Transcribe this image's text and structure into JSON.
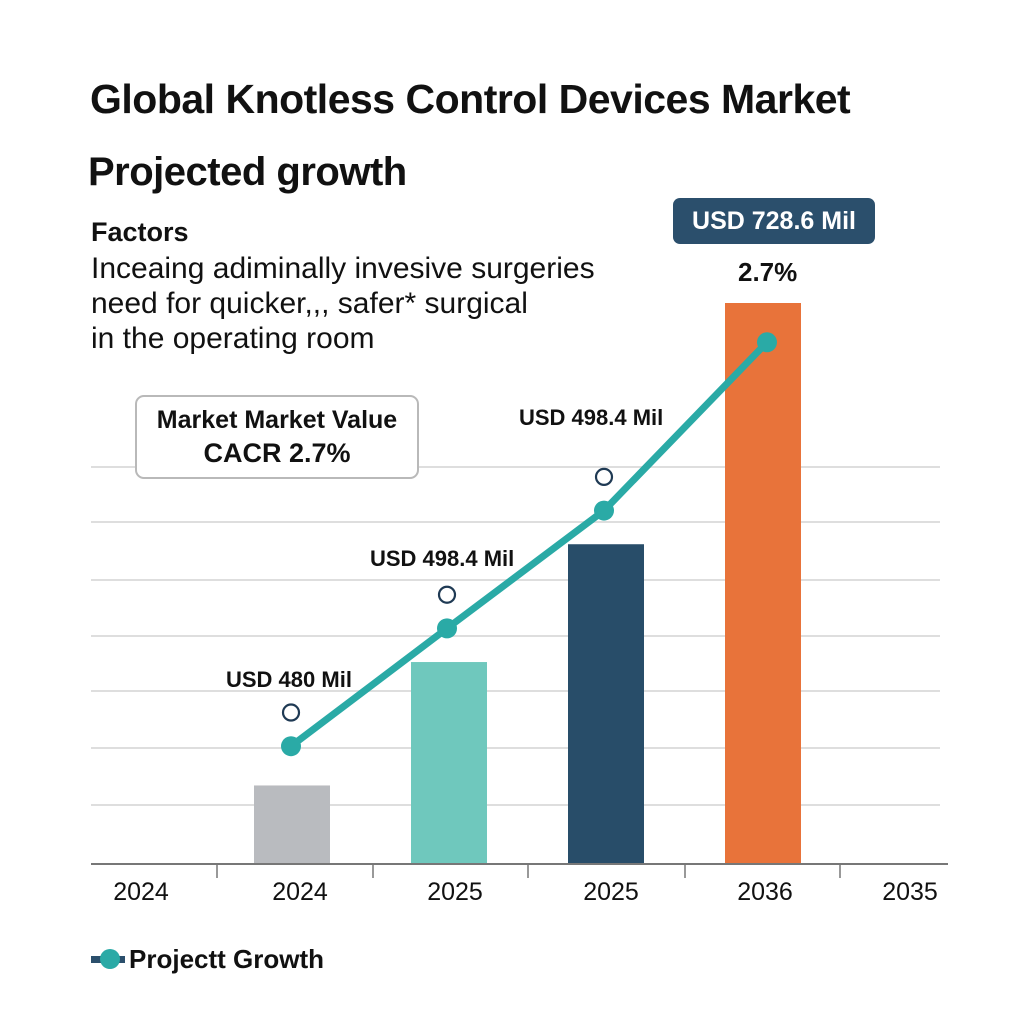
{
  "title": "Global Knotless Control Devices Market",
  "subtitle": "Projected growth",
  "factors": {
    "heading": "Factors",
    "lines": [
      "Inceaing adiminally invesive surgeries",
      "need for quicker,,, safer* surgical",
      "in the operating room"
    ]
  },
  "cagr_box": {
    "line1": "Market Market Value",
    "line2": "CACR 2.7%"
  },
  "highlight": {
    "badge": "USD 728.6 Mil",
    "growth": "2.7%"
  },
  "legend": {
    "label": "Projectt Growth"
  },
  "colors": {
    "bar_2024": "#b9bbbf",
    "bar_2025a": "#6fc8bd",
    "bar_2025b": "#284d69",
    "bar_2036": "#e8733a",
    "line": "#2aaaa6",
    "marker_outline": "#1f3a54",
    "badge_bg": "#2b4f6c",
    "grid": "#dedede",
    "axis": "#777777"
  },
  "chart_data": {
    "type": "bar",
    "title": "Global Knotless Control Devices Market",
    "subtitle": "Projected growth",
    "xlabel": "",
    "ylabel": "",
    "x_tick_labels": [
      "2024",
      "2024",
      "2025",
      "2025",
      "2036",
      "2035"
    ],
    "categories": [
      "2024",
      "2025",
      "2025",
      "2036"
    ],
    "ylim": [
      0,
      100
    ],
    "grid": true,
    "gridline_count": 7,
    "legend_position": "bottom-left",
    "series": [
      {
        "name": "Market Value",
        "type": "bar",
        "values": [
          14,
          36,
          57,
          100
        ],
        "colors": [
          "#b9bbbf",
          "#6fc8bd",
          "#284d69",
          "#e8733a"
        ]
      },
      {
        "name": "Projectt Growth",
        "type": "line",
        "values": [
          21,
          42,
          63,
          93
        ],
        "color": "#2aaaa6"
      },
      {
        "name": "Markers",
        "type": "scatter",
        "values": [
          27,
          48,
          69
        ],
        "style": "hollow"
      }
    ],
    "annotations": [
      {
        "text": "USD 480 Mil",
        "category_index": 0
      },
      {
        "text": "USD 498.4 Mil",
        "category_index": 1
      },
      {
        "text": "USD 498.4 Mil",
        "category_index": 2
      },
      {
        "text": "USD 728.6 Mil",
        "category_index": 3
      },
      {
        "text": "2.7%",
        "category_index": 3
      }
    ]
  }
}
